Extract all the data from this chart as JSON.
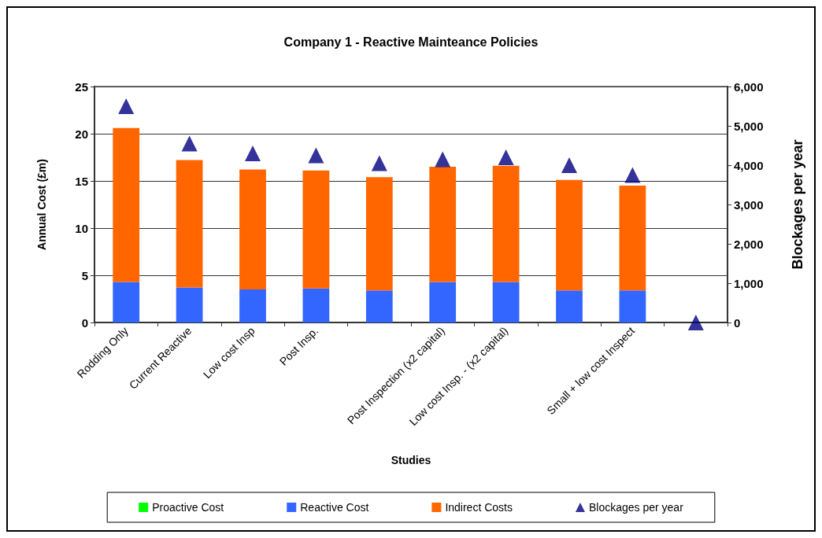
{
  "chart_data": {
    "type": "bar",
    "stacked": true,
    "title": "Company 1 - Reactive Mainteance Policies",
    "xlabel": "Studies",
    "ylabel": "Annual Cost (£m)",
    "y2label": "Blockages per year",
    "categories": [
      "Rodding Only",
      "Current Reactive",
      "Low cost Insp",
      "Post Insp.",
      null,
      "Post Inspection (x2 capital)",
      "Low cost Insp. - (x2 capital)",
      null,
      "Small + low cost Inspect",
      null
    ],
    "series": [
      {
        "name": "Proactive Cost",
        "color": "#00ff00",
        "values": [
          0,
          0,
          0,
          0,
          0,
          0,
          0,
          0,
          0,
          0
        ]
      },
      {
        "name": "Reactive Cost",
        "color": "#3366ff",
        "values": [
          4.3,
          3.7,
          3.5,
          3.6,
          3.4,
          4.3,
          4.3,
          3.4,
          3.4,
          0
        ]
      },
      {
        "name": "Indirect Costs",
        "color": "#ff6600",
        "values": [
          16.3,
          13.5,
          12.7,
          12.5,
          12.0,
          12.2,
          12.3,
          11.7,
          11.1,
          0
        ]
      },
      {
        "name": "Blockages per year",
        "type": "scatter",
        "axis": "y2",
        "marker": "triangle",
        "color": "#000080",
        "values": [
          5500,
          4550,
          4300,
          4250,
          4050,
          4150,
          4200,
          4000,
          3750,
          0
        ]
      }
    ],
    "ylim": [
      0,
      25
    ],
    "yticks": [
      0,
      5,
      10,
      15,
      20,
      25
    ],
    "y2lim": [
      0,
      6000
    ],
    "y2ticks": [
      0,
      {
        "value": 1000,
        "label": "1,000"
      },
      {
        "value": 2000,
        "label": "2,000"
      },
      {
        "value": 3000,
        "label": "3,000"
      },
      {
        "value": 4000,
        "label": "4,000"
      },
      {
        "value": 5000,
        "label": "5,000"
      },
      {
        "value": 6000,
        "label": "6,000"
      }
    ],
    "grid": "y",
    "legend": "bottom"
  }
}
